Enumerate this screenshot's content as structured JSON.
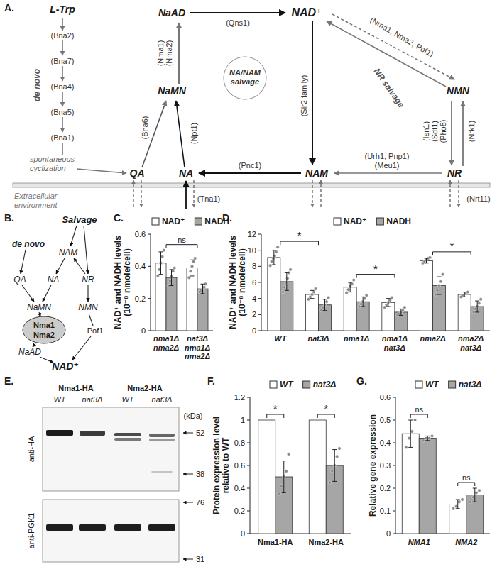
{
  "diagram_a": {
    "title": "A.",
    "nodes": [
      "L-Trp",
      "QA",
      "NA",
      "NaMN",
      "NaAD",
      "NAD⁺",
      "NAM",
      "NMN",
      "NR"
    ],
    "enzymes": [
      "(Bna2)",
      "(Bna7)",
      "(Bna4)",
      "(Bna5)",
      "(Bna1)",
      "(Bna6)",
      "(Npt1)",
      "(Nma1)",
      "(Nma2)",
      "(Qns1)",
      "(Sir2 family)",
      "(Nma1, Nma2, Pof1)",
      "(Pnc1)",
      "(Urh1, Pnp1)",
      "(Meu1)",
      "(Isn1)",
      "(Sdt1)",
      "(Pho8)",
      "(Nrk1)",
      "(Tna1)",
      "(Nrt11)"
    ],
    "labels": [
      "de novo",
      "spontaneous cyclization",
      "NA/NAM salvage",
      "NR salvage",
      "Extracellular environment"
    ]
  },
  "diagram_b": {
    "title": "B.",
    "nodes": [
      "Salvage",
      "de novo",
      "NAM",
      "QA",
      "NA",
      "NR",
      "NaMN",
      "NMN",
      "Nma1",
      "Nma2",
      "NaAD",
      "Pof1",
      "NAD⁺"
    ]
  },
  "blot_e": {
    "title": "E.",
    "groups": [
      "Nma1-HA",
      "Nma2-HA"
    ],
    "lanes": [
      "WT",
      "nat3Δ",
      "WT",
      "nat3Δ"
    ],
    "antibodies": [
      "anti-HA",
      "anti-PGK1"
    ],
    "unit": "(kDa)",
    "markers": [
      [
        52,
        38
      ],
      [
        76,
        31
      ]
    ]
  },
  "chart_data": [
    {
      "type": "bar",
      "title": "C.",
      "ylabel": [
        "NAD⁺ and NADH levels",
        "(10⁻⁸ nmole/cell)"
      ],
      "categories": [
        "nma1Δ nma2Δ",
        "nat3Δ nma1Δ nma2Δ"
      ],
      "series": [
        {
          "name": "NAD⁺",
          "color": "#ffffff",
          "values": [
            0.42,
            0.39
          ],
          "errors": [
            0.07,
            0.05
          ],
          "points": [
            [
              0.34,
              0.38,
              0.42,
              0.46,
              0.5
            ],
            [
              0.33,
              0.37,
              0.4,
              0.43,
              0.45
            ]
          ]
        },
        {
          "name": "NADH",
          "color": "#a6a6a6",
          "values": [
            0.33,
            0.26
          ],
          "errors": [
            0.05,
            0.03
          ],
          "points": [
            [
              0.28,
              0.31,
              0.34,
              0.37,
              0.39
            ],
            [
              0.24,
              0.25,
              0.26,
              0.27,
              0.29
            ]
          ]
        }
      ],
      "ylim": [
        0,
        0.6
      ],
      "yticks": [
        0,
        0.2,
        0.4,
        0.6
      ],
      "legend": "top",
      "annotations": [
        {
          "text": "ns",
          "categories": [
            0,
            1
          ]
        }
      ]
    },
    {
      "type": "bar",
      "title": "D.",
      "ylabel": [
        "NAD⁺ and NADH levels",
        "(10⁻⁸ nmole/cell)"
      ],
      "categories": [
        "WT",
        "nat3Δ",
        "nma1Δ",
        "nma1Δ nat3Δ",
        "nma2Δ",
        "nma2Δ nat3Δ"
      ],
      "series": [
        {
          "name": "NAD⁺",
          "color": "#ffffff",
          "values": [
            9.1,
            4.5,
            5.4,
            3.5,
            8.7,
            4.5
          ],
          "errors": [
            0.9,
            0.5,
            0.6,
            0.5,
            0.3,
            0.3
          ],
          "points": [
            [
              8.1,
              8.6,
              9.0,
              9.3,
              9.8,
              10.4
            ],
            [
              3.9,
              4.2,
              4.5,
              4.8,
              5.2
            ],
            [
              4.7,
              5.1,
              5.5,
              5.8,
              6.3
            ],
            [
              2.9,
              3.2,
              3.5,
              3.8,
              4.1
            ],
            [
              8.4,
              8.6,
              8.8,
              9.0,
              9.1
            ],
            [
              4.2,
              4.4,
              4.6,
              4.8
            ]
          ]
        },
        {
          "name": "NADH",
          "color": "#a6a6a6",
          "values": [
            6.1,
            3.2,
            3.6,
            2.3,
            5.6,
            3.0
          ],
          "errors": [
            1.1,
            0.7,
            0.6,
            0.4,
            1.1,
            0.7
          ],
          "points": [
            [
              4.8,
              5.4,
              6.0,
              6.5,
              7.2,
              7.6
            ],
            [
              2.5,
              2.9,
              3.2,
              3.6,
              4.1
            ],
            [
              3.0,
              3.3,
              3.6,
              4.0,
              4.4
            ],
            [
              1.9,
              2.1,
              2.3,
              2.5,
              2.9
            ],
            [
              4.5,
              5.0,
              5.6,
              6.1,
              7.0
            ],
            [
              2.3,
              2.7,
              3.0,
              3.4,
              3.9
            ]
          ]
        }
      ],
      "ylim": [
        0,
        12
      ],
      "yticks": [
        0,
        2,
        4,
        6,
        8,
        10,
        12
      ],
      "legend": "top",
      "annotations": [
        {
          "text": "*",
          "categories": [
            0,
            1
          ]
        },
        {
          "text": "*",
          "categories": [
            2,
            3
          ]
        },
        {
          "text": "*",
          "categories": [
            4,
            5
          ]
        }
      ]
    },
    {
      "type": "bar",
      "title": "F.",
      "ylabel": [
        "Protein expression level",
        "relative to WT"
      ],
      "categories": [
        "Nma1-HA",
        "Nma2-HA"
      ],
      "series": [
        {
          "name": "WT",
          "color": "#ffffff",
          "values": [
            1,
            1
          ]
        },
        {
          "name": "nat3Δ",
          "color": "#a6a6a6",
          "values": [
            0.5,
            0.6
          ],
          "errors": [
            0.14,
            0.14
          ],
          "points": [
            [
              0.35,
              0.42,
              0.5,
              0.55,
              0.7
            ],
            [
              0.45,
              0.55,
              0.6,
              0.68,
              0.75
            ]
          ]
        }
      ],
      "ylim": [
        0,
        1.2
      ],
      "yticks": [
        0,
        0.2,
        0.4,
        0.6,
        0.8,
        1,
        1.2
      ],
      "legend": "top",
      "annotations": [
        {
          "text": "*",
          "category": 0
        },
        {
          "text": "*",
          "category": 1
        }
      ]
    },
    {
      "type": "bar",
      "title": "G.",
      "ylabel": [
        "Relative gene expression"
      ],
      "categories": [
        "NMA1",
        "NMA2"
      ],
      "series": [
        {
          "name": "WT",
          "color": "#ffffff",
          "values": [
            0.44,
            0.13
          ],
          "errors": [
            0.06,
            0.02
          ],
          "points": [
            [
              0.38,
              0.42,
              0.45,
              0.5
            ],
            [
              0.11,
              0.12,
              0.14,
              0.15
            ]
          ]
        },
        {
          "name": "nat3Δ",
          "color": "#a6a6a6",
          "values": [
            0.42,
            0.17
          ],
          "errors": [
            0.01,
            0.03
          ],
          "points": [
            [
              0.41,
              0.42,
              0.42,
              0.43
            ],
            [
              0.14,
              0.16,
              0.18,
              0.19
            ]
          ]
        }
      ],
      "ylim": [
        0,
        0.6
      ],
      "yticks": [
        0,
        0.1,
        0.2,
        0.3,
        0.4,
        0.5,
        0.6
      ],
      "legend": "top",
      "annotations": [
        {
          "text": "ns",
          "category": 0
        },
        {
          "text": "ns",
          "category": 1
        }
      ]
    }
  ]
}
